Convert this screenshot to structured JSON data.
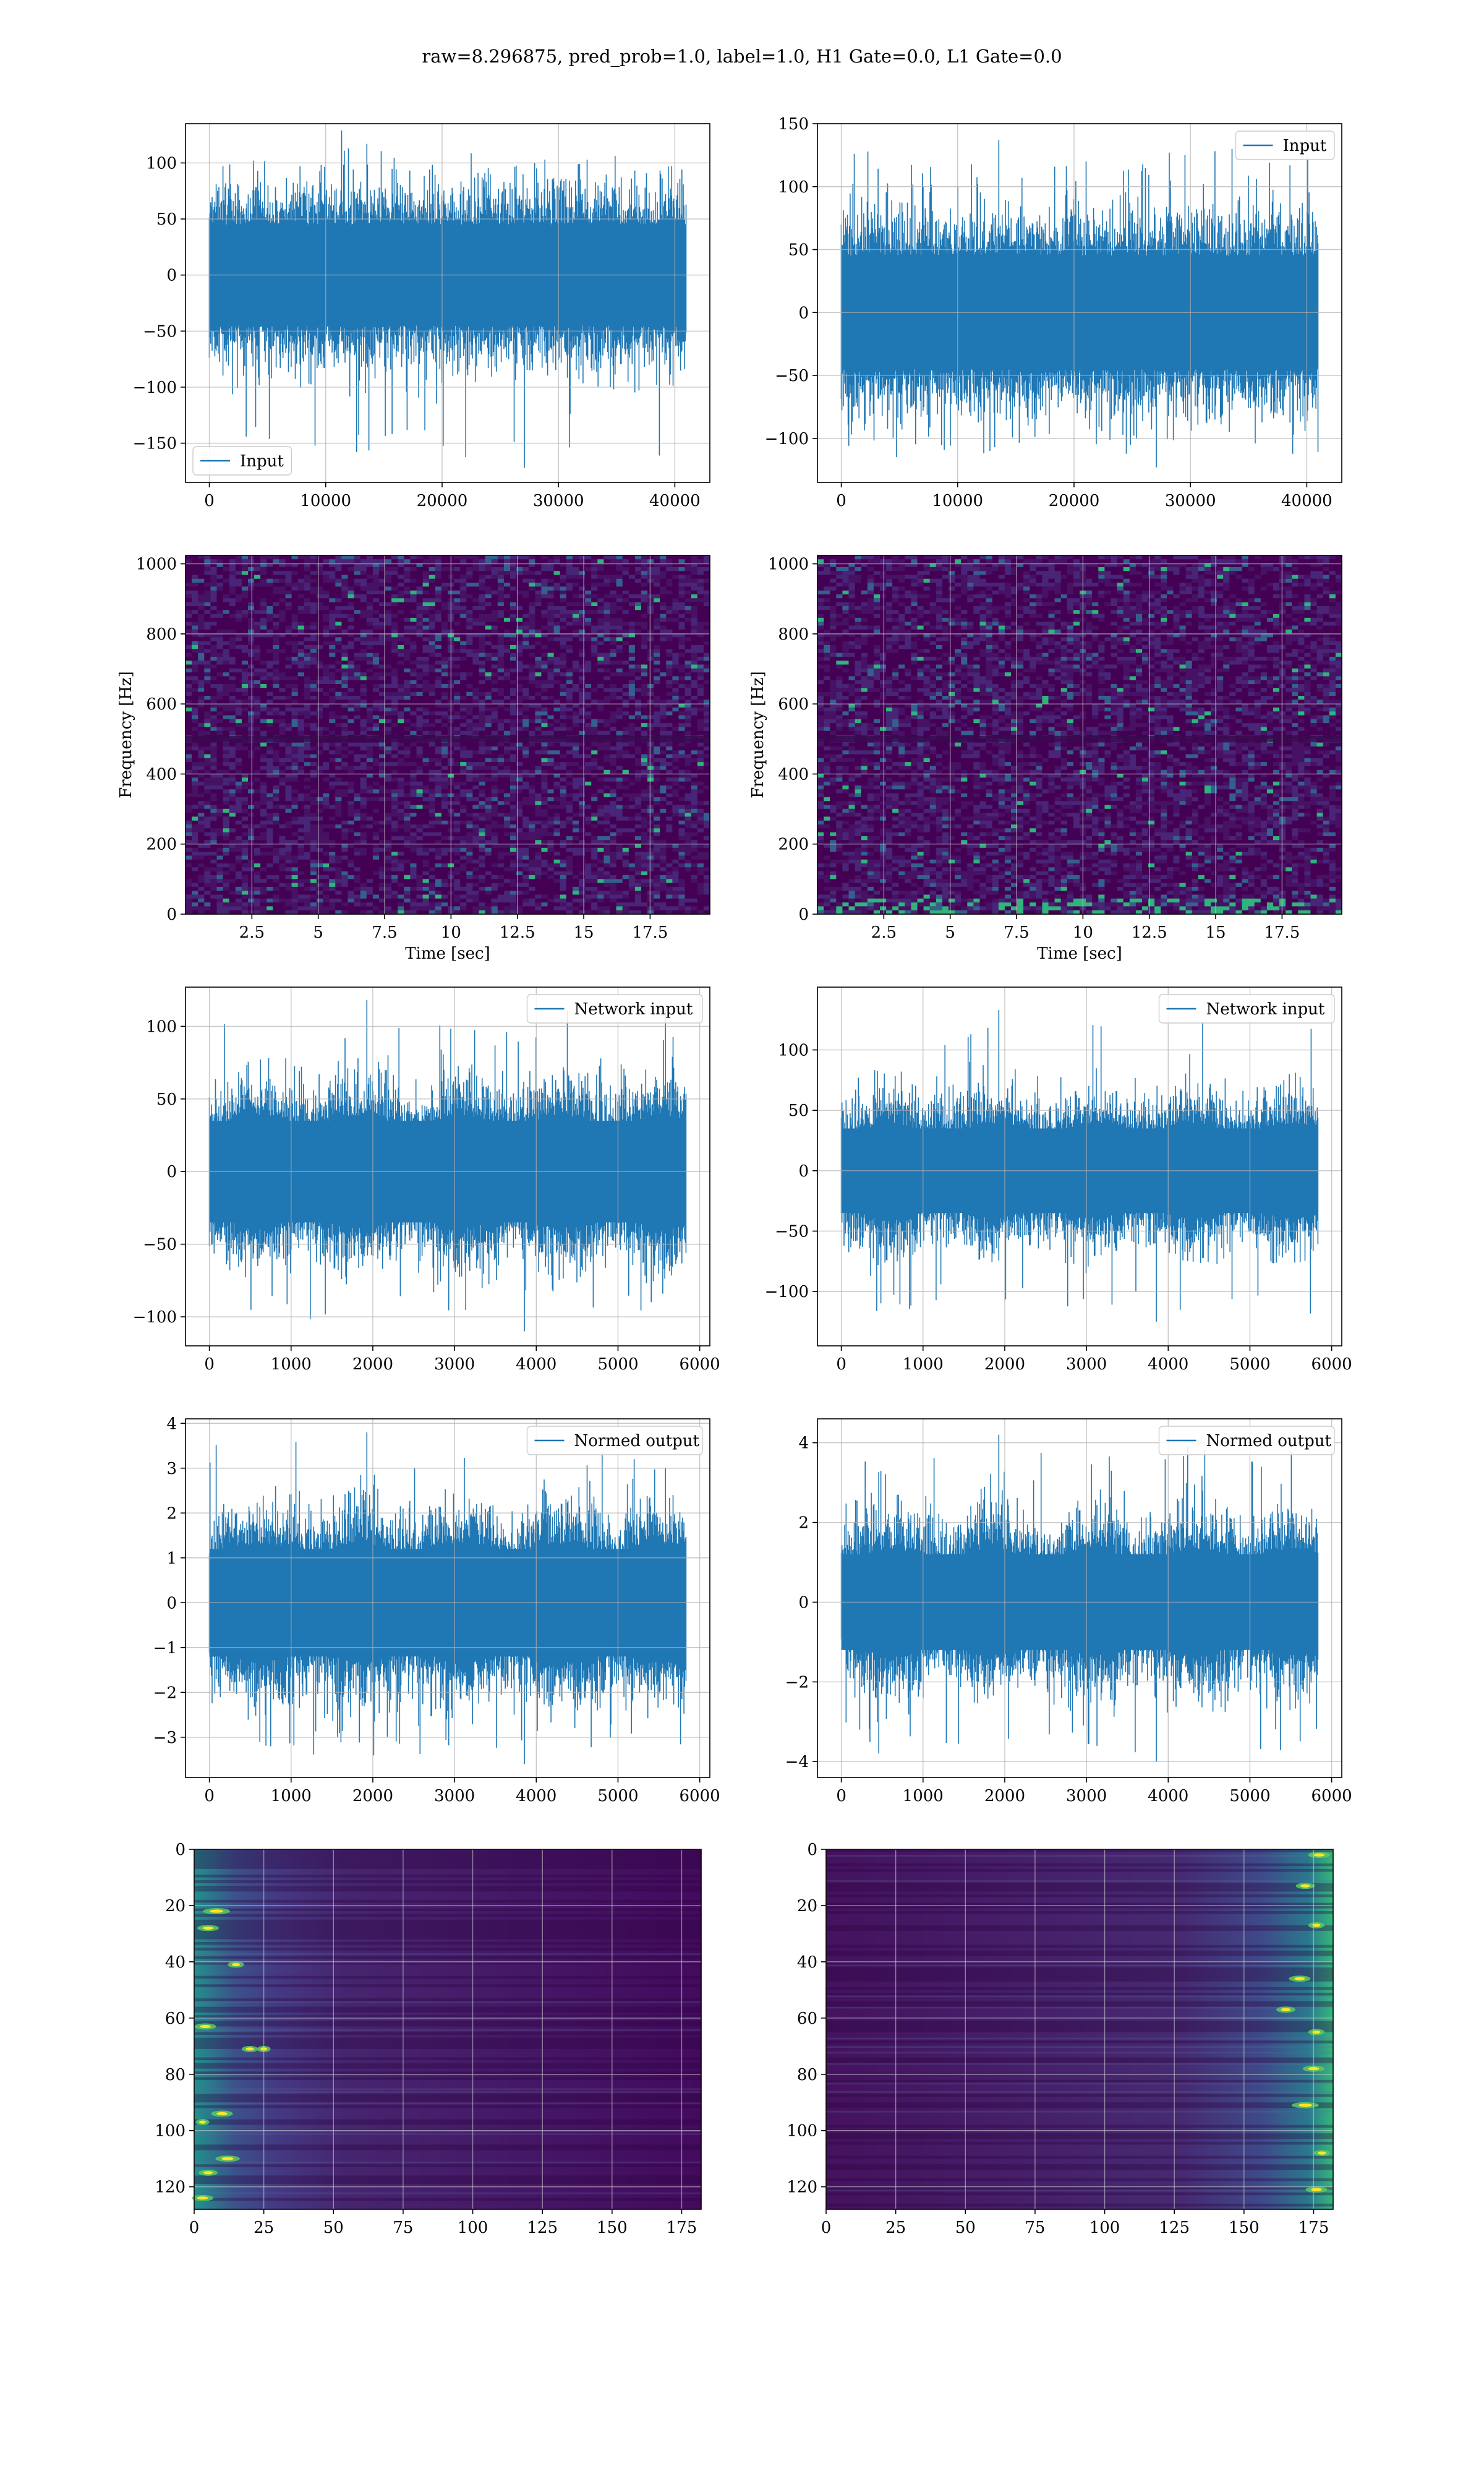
{
  "title": "raw=8.296875, pred_prob=1.0, label=1.0, H1 Gate=0.0, L1 Gate=0.0",
  "colors": {
    "series": "#1f77b4",
    "grid": "#b0b0b0",
    "viridis_low": "#440154",
    "viridis_high": "#fde725"
  },
  "chart_data": [
    {
      "id": "input_h1",
      "type": "line",
      "series": [
        {
          "name": "Input",
          "n_samples": 40960
        }
      ],
      "xlim": [
        -2048,
        43008
      ],
      "ylim": [
        -185,
        135
      ],
      "xticks": [
        0,
        10000,
        20000,
        30000,
        40000
      ],
      "yticks": [
        -150,
        -100,
        -50,
        0,
        50,
        100
      ],
      "amplitude": {
        "core": 45,
        "max": 117,
        "min": -172
      },
      "legend": "lower left",
      "grid": true,
      "xlabel": "",
      "ylabel": ""
    },
    {
      "id": "input_l1",
      "type": "line",
      "series": [
        {
          "name": "Input",
          "n_samples": 40960
        }
      ],
      "xlim": [
        -2048,
        43008
      ],
      "ylim": [
        -135,
        150
      ],
      "xticks": [
        0,
        10000,
        20000,
        30000,
        40000
      ],
      "yticks": [
        -100,
        -50,
        0,
        50,
        100,
        150
      ],
      "amplitude": {
        "core": 45,
        "max": 137,
        "min": -123
      },
      "legend": "upper right",
      "grid": true,
      "xlabel": "",
      "ylabel": ""
    },
    {
      "id": "spec_h1",
      "type": "heatmap",
      "xlim": [
        0,
        19.75
      ],
      "ylim": [
        0,
        1024
      ],
      "xticks": [
        2.5,
        5.0,
        7.5,
        10.0,
        12.5,
        15.0,
        17.5
      ],
      "yticks": [
        0,
        200,
        400,
        600,
        800,
        1000
      ],
      "xlabel": "Time [sec]",
      "ylabel": "Frequency [Hz]",
      "colormap": "viridis",
      "grid": true
    },
    {
      "id": "spec_l1",
      "type": "heatmap",
      "xlim": [
        0,
        19.75
      ],
      "ylim": [
        0,
        1024
      ],
      "xticks": [
        2.5,
        5.0,
        7.5,
        10.0,
        12.5,
        15.0,
        17.5
      ],
      "yticks": [
        0,
        200,
        400,
        600,
        800,
        1000
      ],
      "xlabel": "Time [sec]",
      "ylabel": "Frequency [Hz]",
      "colormap": "viridis",
      "grid": true
    },
    {
      "id": "net_h1",
      "type": "line",
      "series": [
        {
          "name": "Network input",
          "n_samples": 5832
        }
      ],
      "xlim": [
        -292,
        6124
      ],
      "ylim": [
        -120,
        127
      ],
      "xticks": [
        0,
        1000,
        2000,
        3000,
        4000,
        5000,
        6000
      ],
      "yticks": [
        -100,
        -50,
        0,
        50,
        100
      ],
      "amplitude": {
        "core": 35,
        "max": 118,
        "min": -110
      },
      "legend": "upper right",
      "grid": true,
      "xlabel": "",
      "ylabel": ""
    },
    {
      "id": "net_l1",
      "type": "line",
      "series": [
        {
          "name": "Network input",
          "n_samples": 5832
        }
      ],
      "xlim": [
        -292,
        6124
      ],
      "ylim": [
        -145,
        152
      ],
      "xticks": [
        0,
        1000,
        2000,
        3000,
        4000,
        5000,
        6000
      ],
      "yticks": [
        -100,
        -50,
        0,
        50,
        100
      ],
      "amplitude": {
        "core": 35,
        "max": 133,
        "min": -125
      },
      "legend": "upper right",
      "grid": true,
      "xlabel": "",
      "ylabel": ""
    },
    {
      "id": "norm_h1",
      "type": "line",
      "series": [
        {
          "name": "Normed output",
          "n_samples": 5832
        }
      ],
      "xlim": [
        -292,
        6124
      ],
      "ylim": [
        -3.9,
        4.1
      ],
      "xticks": [
        0,
        1000,
        2000,
        3000,
        4000,
        5000,
        6000
      ],
      "yticks": [
        -3,
        -2,
        -1,
        0,
        1,
        2,
        3,
        4
      ],
      "amplitude": {
        "core": 1.2,
        "max": 3.8,
        "min": -3.6
      },
      "legend": "upper right",
      "grid": true,
      "xlabel": "",
      "ylabel": ""
    },
    {
      "id": "norm_l1",
      "type": "line",
      "series": [
        {
          "name": "Normed output",
          "n_samples": 5832
        }
      ],
      "xlim": [
        -292,
        6124
      ],
      "ylim": [
        -4.4,
        4.6
      ],
      "xticks": [
        0,
        1000,
        2000,
        3000,
        4000,
        5000,
        6000
      ],
      "yticks": [
        -4,
        -2,
        0,
        2,
        4
      ],
      "amplitude": {
        "core": 1.2,
        "max": 4.2,
        "min": -4.0
      },
      "legend": "upper right",
      "grid": true,
      "xlabel": "",
      "ylabel": ""
    },
    {
      "id": "feat_h1",
      "type": "heatmap",
      "xlim": [
        0,
        182
      ],
      "ylim": [
        128,
        0
      ],
      "xticks": [
        0,
        25,
        50,
        75,
        100,
        125,
        150,
        175
      ],
      "yticks": [
        0,
        20,
        40,
        60,
        80,
        100,
        120
      ],
      "colormap": "viridis",
      "grid": true,
      "bright_region": "left",
      "xlabel": "",
      "ylabel": ""
    },
    {
      "id": "feat_l1",
      "type": "heatmap",
      "xlim": [
        0,
        182
      ],
      "ylim": [
        128,
        0
      ],
      "xticks": [
        0,
        25,
        50,
        75,
        100,
        125,
        150,
        175
      ],
      "yticks": [
        0,
        20,
        40,
        60,
        80,
        100,
        120
      ],
      "colormap": "viridis",
      "grid": true,
      "bright_region": "right",
      "xlabel": "",
      "ylabel": ""
    }
  ]
}
